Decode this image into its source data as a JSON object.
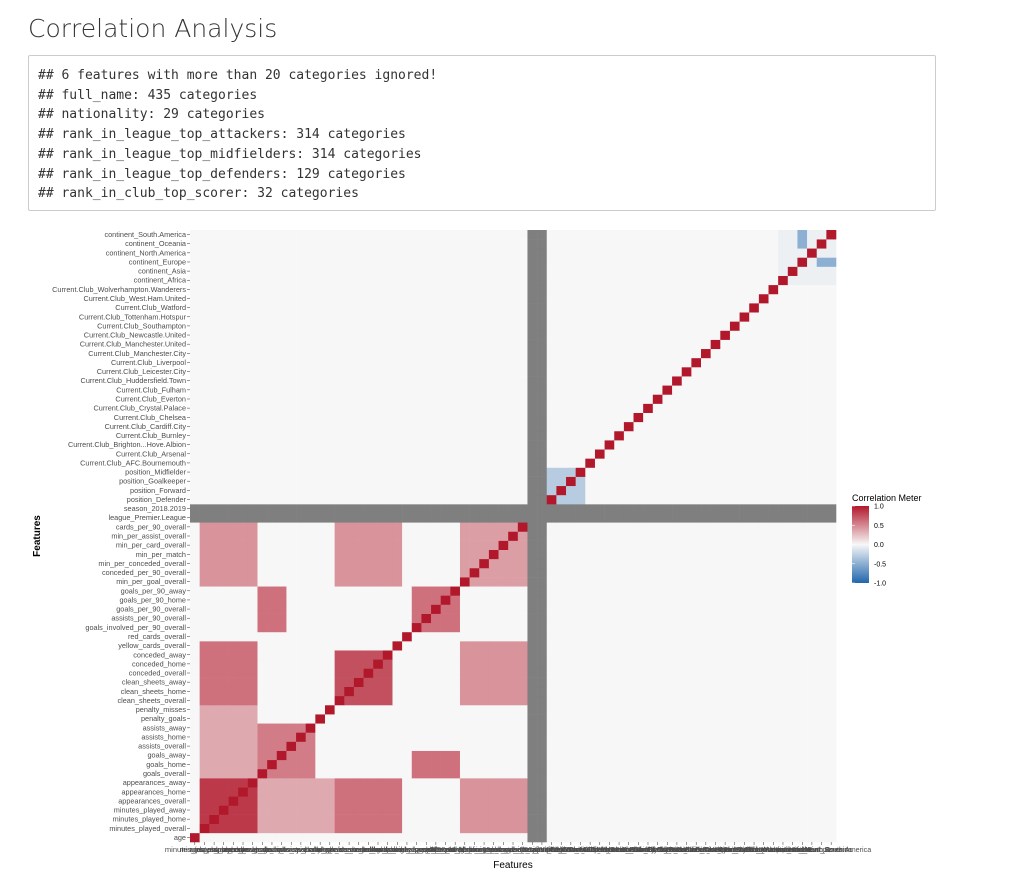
{
  "page": {
    "title": "Correlation Analysis",
    "console_lines": [
      "## 6 features with more than 20 categories ignored!",
      "## full_name: 435 categories",
      "## nationality: 29 categories",
      "## rank_in_league_top_attackers: 314 categories",
      "## rank_in_league_top_midfielders: 314 categories",
      "## rank_in_league_top_defenders: 129 categories",
      "## rank_in_club_top_scorer: 32 categories"
    ]
  },
  "chart_data": {
    "type": "heatmap",
    "title": "",
    "xlabel": "Features",
    "ylabel": "Features",
    "legend_title": "Correlation Meter",
    "legend_position": "right",
    "color_scale": {
      "low": "#2166ac",
      "mid": "#f7f7f7",
      "high": "#b2182b",
      "na": "#7f7f7f"
    },
    "legend_ticks": [
      "1.0",
      "0.5",
      "0.0",
      "-0.5",
      "-1.0"
    ],
    "legend_tick_values": [
      1.0,
      0.5,
      0.0,
      -0.5,
      -1.0
    ],
    "range": [
      -1,
      1
    ],
    "x_tick_labels_legible": [
      "minutes_played_overall",
      "continent_South.America"
    ],
    "features": [
      "age",
      "minutes_played_overall",
      "minutes_played_home",
      "minutes_played_away",
      "appearances_overall",
      "appearances_home",
      "appearances_away",
      "goals_overall",
      "goals_home",
      "goals_away",
      "assists_overall",
      "assists_home",
      "assists_away",
      "penalty_goals",
      "penalty_misses",
      "clean_sheets_overall",
      "clean_sheets_home",
      "clean_sheets_away",
      "conceded_overall",
      "conceded_home",
      "conceded_away",
      "yellow_cards_overall",
      "red_cards_overall",
      "goals_involved_per_90_overall",
      "assists_per_90_overall",
      "goals_per_90_overall",
      "goals_per_90_home",
      "goals_per_90_away",
      "min_per_goal_overall",
      "conceded_per_90_overall",
      "min_per_conceded_overall",
      "min_per_match",
      "min_per_card_overall",
      "min_per_assist_overall",
      "cards_per_90_overall",
      "league_Premier.League",
      "season_2018.2019",
      "position_Defender",
      "position_Forward",
      "position_Goalkeeper",
      "position_Midfielder",
      "Current.Club_AFC.Bournemouth",
      "Current.Club_Arsenal",
      "Current.Club_Brighton...Hove.Albion",
      "Current.Club_Burnley",
      "Current.Club_Cardiff.City",
      "Current.Club_Chelsea",
      "Current.Club_Crystal.Palace",
      "Current.Club_Everton",
      "Current.Club_Fulham",
      "Current.Club_Huddersfield.Town",
      "Current.Club_Leicester.City",
      "Current.Club_Liverpool",
      "Current.Club_Manchester.City",
      "Current.Club_Manchester.United",
      "Current.Club_Newcastle.United",
      "Current.Club_Southampton",
      "Current.Club_Tottenham.Hotspur",
      "Current.Club_Watford",
      "Current.Club_West.Ham.United",
      "Current.Club_Wolverhampton.Wanderers",
      "continent_Africa",
      "continent_Asia",
      "continent_Europe",
      "continent_North.America",
      "continent_Oceania",
      "continent_South.America"
    ],
    "na_features": [
      "league_Premier.League",
      "season_2018.2019"
    ],
    "correlation_blocks": [
      {
        "rows": [
          1,
          6
        ],
        "cols": [
          1,
          6
        ],
        "value": 0.85
      },
      {
        "rows": [
          1,
          6
        ],
        "cols": [
          7,
          14
        ],
        "value": 0.35
      },
      {
        "rows": [
          1,
          6
        ],
        "cols": [
          15,
          21
        ],
        "value": 0.6
      },
      {
        "rows": [
          1,
          6
        ],
        "cols": [
          28,
          34
        ],
        "value": 0.45
      },
      {
        "rows": [
          7,
          12
        ],
        "cols": [
          7,
          12
        ],
        "value": 0.55
      },
      {
        "rows": [
          7,
          9
        ],
        "cols": [
          23,
          27
        ],
        "value": 0.6
      },
      {
        "rows": [
          15,
          20
        ],
        "cols": [
          15,
          20
        ],
        "value": 0.75
      },
      {
        "rows": [
          15,
          21
        ],
        "cols": [
          28,
          34
        ],
        "value": 0.45
      },
      {
        "rows": [
          23,
          27
        ],
        "cols": [
          23,
          27
        ],
        "value": 0.6
      },
      {
        "rows": [
          28,
          34
        ],
        "cols": [
          28,
          34
        ],
        "value": 0.4
      },
      {
        "rows": [
          37,
          40
        ],
        "cols": [
          37,
          40
        ],
        "value": -0.3
      },
      {
        "rows": [
          61,
          66
        ],
        "cols": [
          61,
          66
        ],
        "value": -0.05
      },
      {
        "rows": [
          63,
          63
        ],
        "cols": [
          65,
          66
        ],
        "value": -0.5
      }
    ]
  }
}
